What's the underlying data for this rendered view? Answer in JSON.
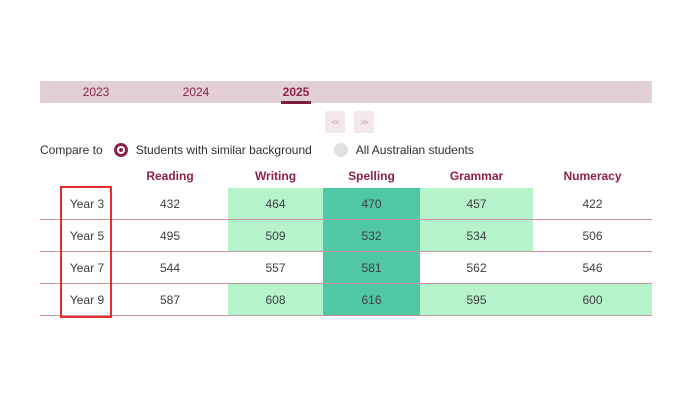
{
  "tabs": {
    "items": [
      {
        "label": "2023",
        "active": false
      },
      {
        "label": "2024",
        "active": false
      },
      {
        "label": "2025",
        "active": true
      }
    ]
  },
  "pager": {
    "prev_label": "<<",
    "next_label": ">>"
  },
  "compare": {
    "label": "Compare to",
    "options": [
      {
        "label": "Students with similar background",
        "selected": true
      },
      {
        "label": "All Australian students",
        "selected": false
      }
    ]
  },
  "table": {
    "columns": [
      "Reading",
      "Writing",
      "Spelling",
      "Grammar",
      "Numeracy"
    ],
    "rows": [
      {
        "label": "Year 3",
        "values": [
          "432",
          "464",
          "470",
          "457",
          "422"
        ],
        "highlights": [
          "none",
          "light",
          "strong",
          "light",
          "none"
        ]
      },
      {
        "label": "Year 5",
        "values": [
          "495",
          "509",
          "532",
          "534",
          "506"
        ],
        "highlights": [
          "none",
          "light",
          "strong",
          "light",
          "none"
        ]
      },
      {
        "label": "Year 7",
        "values": [
          "544",
          "557",
          "581",
          "562",
          "546"
        ],
        "highlights": [
          "none",
          "none",
          "strong",
          "none",
          "none"
        ]
      },
      {
        "label": "Year 9",
        "values": [
          "587",
          "608",
          "616",
          "595",
          "600"
        ],
        "highlights": [
          "none",
          "light",
          "strong",
          "light",
          "light"
        ]
      }
    ]
  },
  "colors": {
    "accent_maroon": "#8e2244",
    "tab_underline": "#7b1d3c",
    "tab_bar_bg": "#e3d0d7",
    "pager_button_bg": "#f3e8ec",
    "highlight_light": "#b5f3cb",
    "highlight_strong": "#50c8a3",
    "row_divider": "#c795a2",
    "year_focus_box_red": "#e62c2c"
  }
}
